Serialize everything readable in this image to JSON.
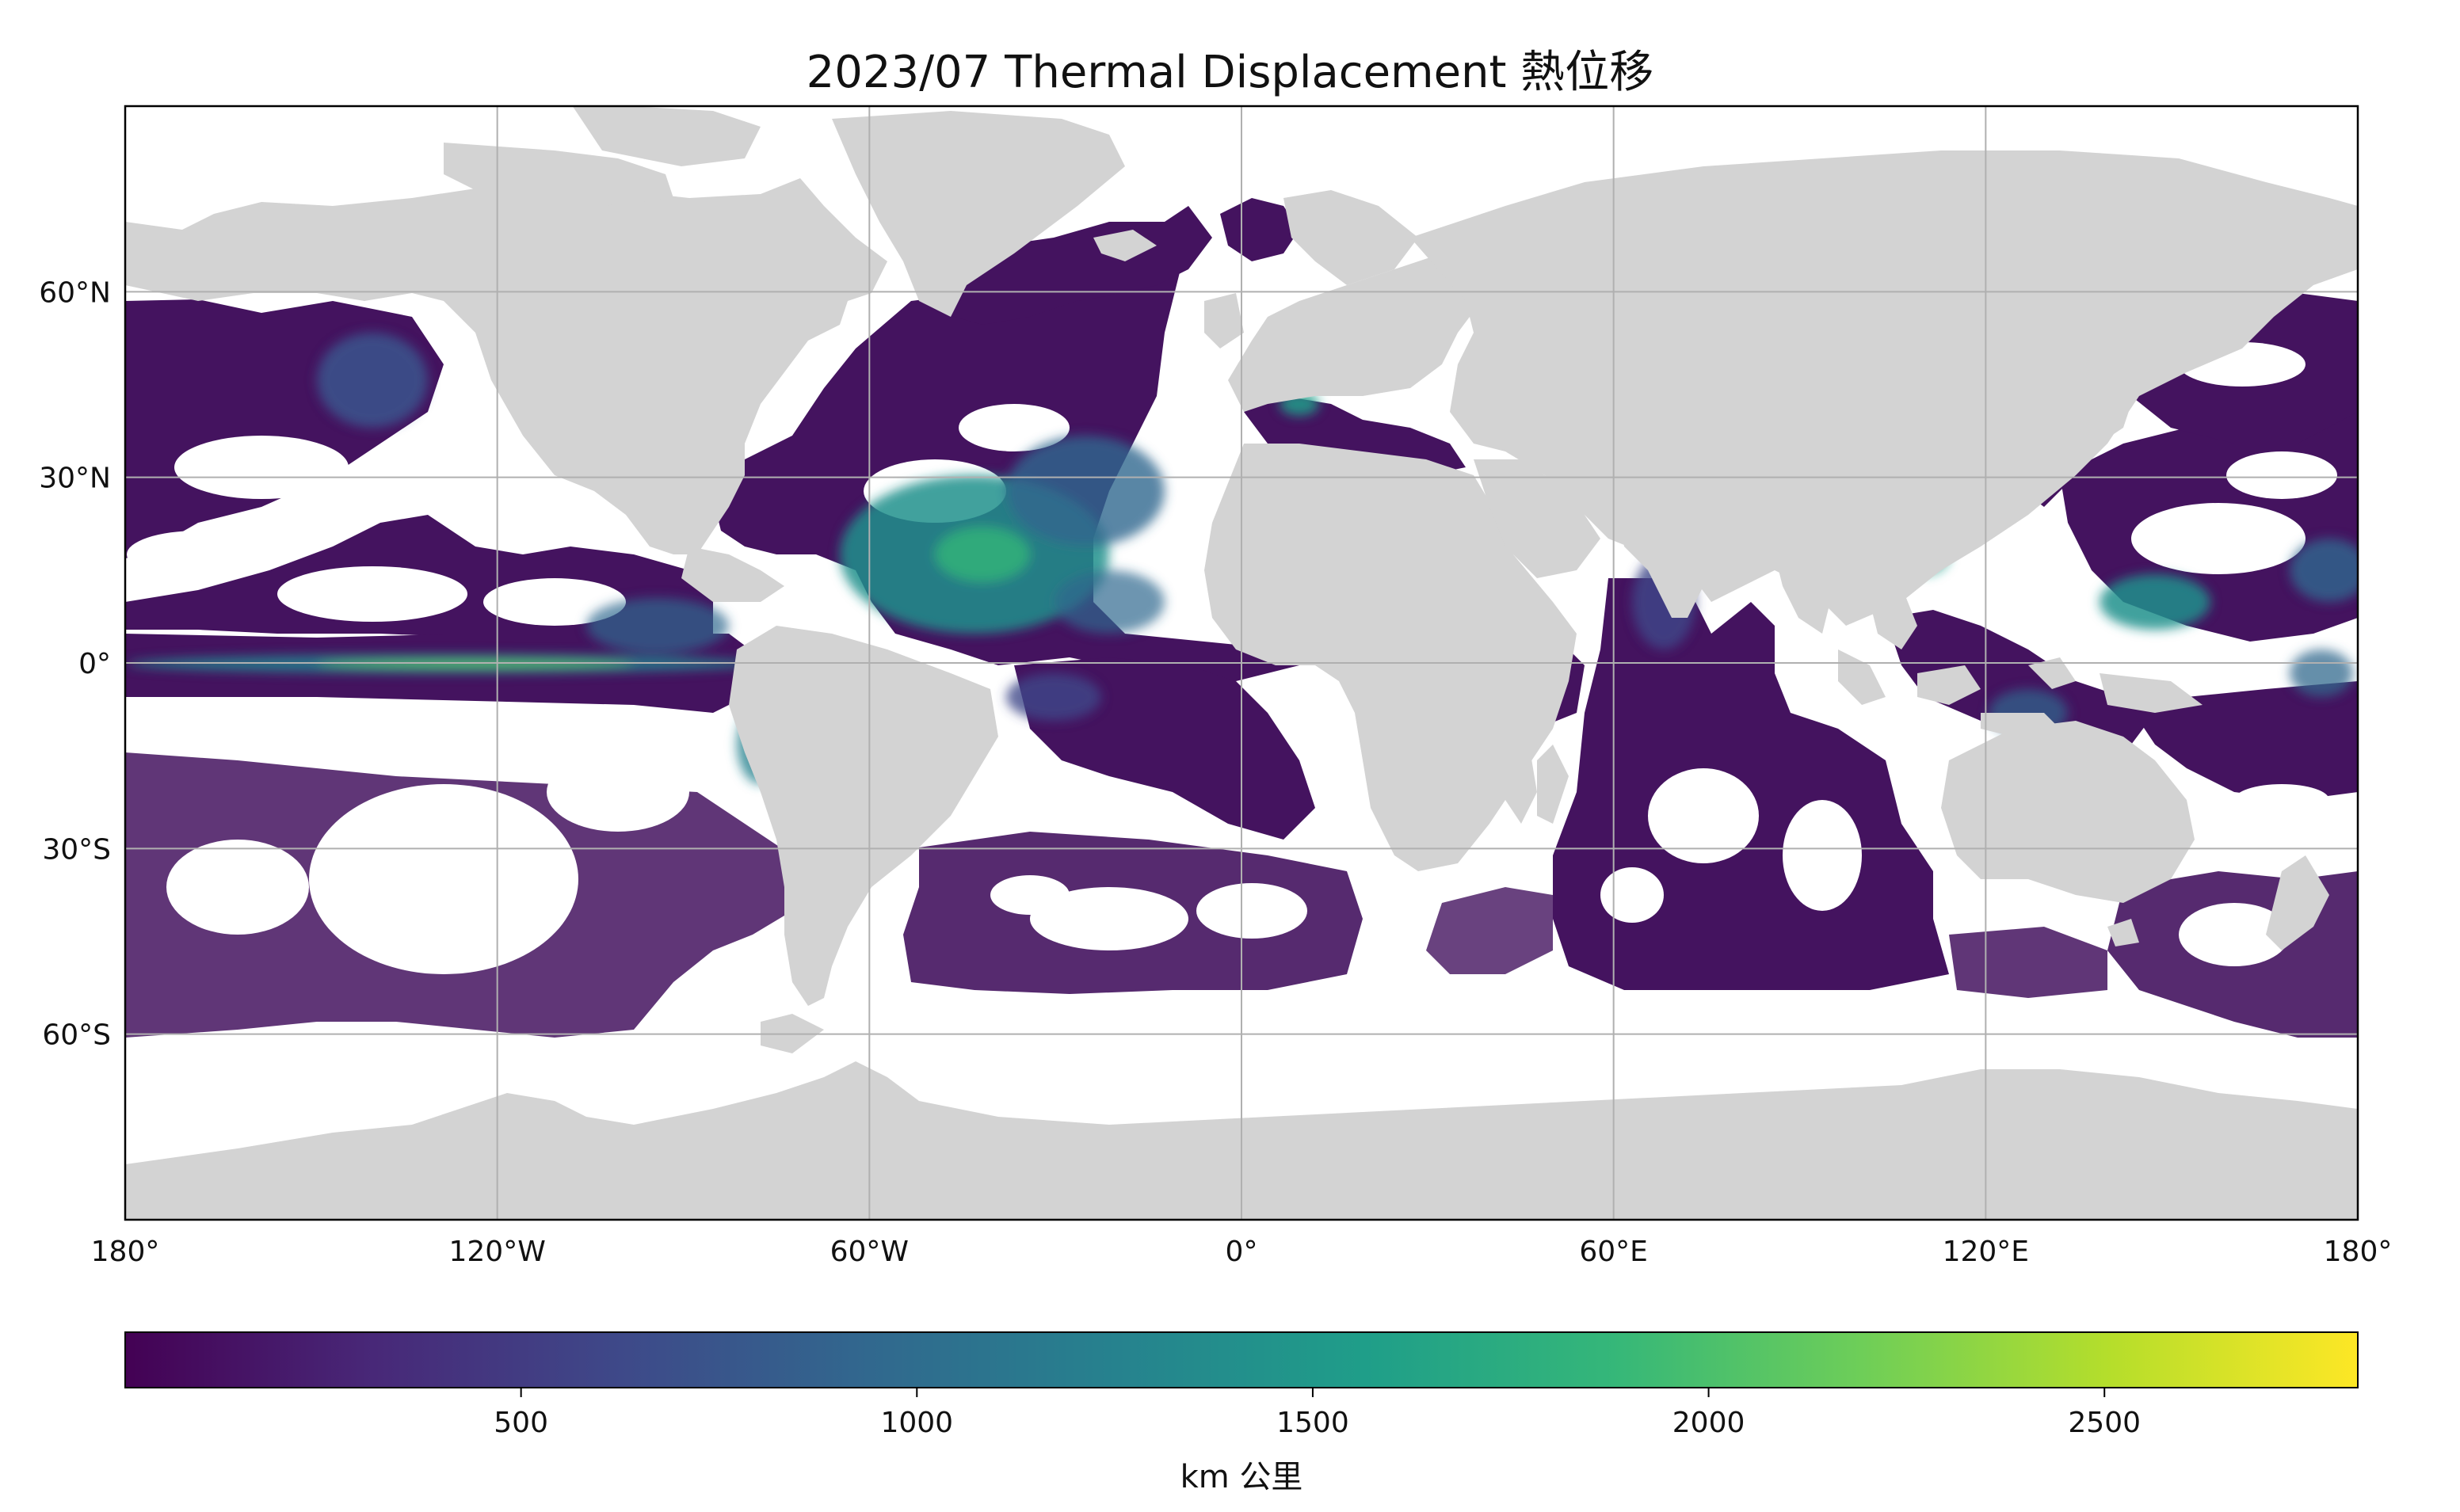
{
  "title": "2023/07 Thermal Displacement  熱位移",
  "colors": {
    "land": "#d3d3d3",
    "no_data": "#ffffff",
    "grid": "#b0b0b0",
    "frame": "#000000",
    "colormap": [
      "#440154",
      "#482878",
      "#3e4989",
      "#31688e",
      "#26828e",
      "#1f9e89",
      "#35b779",
      "#6ece58",
      "#b5de2b",
      "#fde725"
    ]
  },
  "map": {
    "projection": "PlateCarree",
    "lon_range": [
      -180,
      180
    ],
    "lat_range": [
      -90,
      90
    ],
    "lon_ticks": [
      {
        "value": -180,
        "label": "180°"
      },
      {
        "value": -120,
        "label": "120°W"
      },
      {
        "value": -60,
        "label": "60°W"
      },
      {
        "value": 0,
        "label": "0°"
      },
      {
        "value": 60,
        "label": "60°E"
      },
      {
        "value": 120,
        "label": "120°E"
      },
      {
        "value": 180,
        "label": "180°"
      }
    ],
    "lat_ticks": [
      {
        "value": 60,
        "label": "60°N"
      },
      {
        "value": 30,
        "label": "30°N"
      },
      {
        "value": 0,
        "label": "0°"
      },
      {
        "value": -30,
        "label": "30°S"
      },
      {
        "value": -60,
        "label": "60°S"
      }
    ],
    "gridlines": true,
    "data_lat_range": [
      -60,
      60
    ]
  },
  "colorbar": {
    "range": [
      0,
      2820
    ],
    "ticks": [
      500,
      1000,
      1500,
      2000,
      2500
    ],
    "label": "km 公里",
    "orientation": "horizontal"
  }
}
